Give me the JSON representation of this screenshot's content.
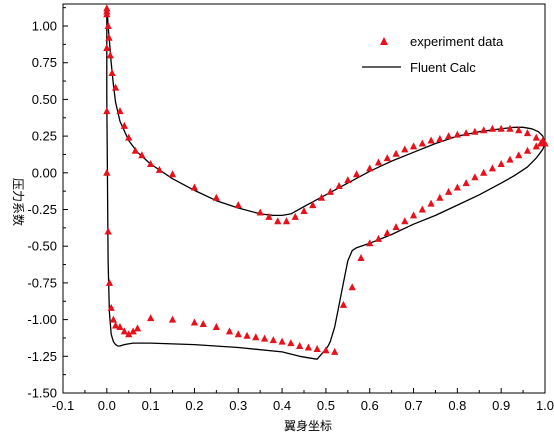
{
  "chart_data": {
    "type": "scatter",
    "title": "",
    "xlabel": "翼身坐标",
    "ylabel": "压力系数",
    "xlim": [
      -0.1,
      1.0
    ],
    "ylim": [
      -1.5,
      1.15
    ],
    "xticks": [
      "-0.1",
      "0.0",
      "0.1",
      "0.2",
      "0.3",
      "0.4",
      "0.5",
      "0.6",
      "0.7",
      "0.8",
      "0.9",
      "1.0"
    ],
    "yticks": [
      "-1.50",
      "-1.25",
      "-1.00",
      "-0.75",
      "-0.50",
      "-0.25",
      "0.00",
      "0.25",
      "0.50",
      "0.75",
      "1.00"
    ],
    "grid": false,
    "legend_position": "top-right",
    "legend": {
      "experiment_label": "experiment data",
      "fluent_label": "Fluent Calc"
    },
    "colors": {
      "experiment": "#e8101a",
      "fluent": "#000000"
    },
    "series": [
      {
        "name": "experiment data",
        "type": "scatter",
        "x": [
          0.0,
          0.0,
          0.0,
          0.003,
          0.005,
          0.008,
          0.012,
          0.02,
          0.03,
          0.04,
          0.05,
          0.065,
          0.08,
          0.1,
          0.12,
          0.15,
          0.2,
          0.25,
          0.3,
          0.35,
          0.37,
          0.39,
          0.41,
          0.43,
          0.45,
          0.47,
          0.49,
          0.51,
          0.53,
          0.55,
          0.57,
          0.6,
          0.62,
          0.64,
          0.66,
          0.68,
          0.7,
          0.72,
          0.74,
          0.76,
          0.78,
          0.8,
          0.82,
          0.84,
          0.86,
          0.88,
          0.9,
          0.92,
          0.94,
          0.96,
          0.98,
          0.995,
          1.0,
          0.0,
          0.0,
          0.0,
          0.003,
          0.006,
          0.01,
          0.015,
          0.02,
          0.03,
          0.04,
          0.05,
          0.06,
          0.07,
          0.1,
          0.15,
          0.2,
          0.22,
          0.25,
          0.28,
          0.3,
          0.32,
          0.34,
          0.36,
          0.38,
          0.4,
          0.42,
          0.44,
          0.46,
          0.48,
          0.5,
          0.52,
          0.54,
          0.56,
          0.58,
          0.6,
          0.62,
          0.64,
          0.66,
          0.68,
          0.7,
          0.72,
          0.74,
          0.76,
          0.78,
          0.8,
          0.82,
          0.84,
          0.86,
          0.88,
          0.9,
          0.92,
          0.94,
          0.96,
          0.98,
          0.99
        ],
        "y": [
          1.12,
          1.1,
          1.08,
          1.0,
          0.92,
          0.8,
          0.68,
          0.58,
          0.42,
          0.32,
          0.24,
          0.15,
          0.12,
          0.06,
          0.02,
          -0.01,
          -0.1,
          -0.17,
          -0.22,
          -0.27,
          -0.3,
          -0.33,
          -0.33,
          -0.3,
          -0.26,
          -0.22,
          -0.17,
          -0.13,
          -0.09,
          -0.05,
          -0.01,
          0.03,
          0.07,
          0.1,
          0.13,
          0.16,
          0.18,
          0.2,
          0.22,
          0.23,
          0.25,
          0.26,
          0.27,
          0.28,
          0.29,
          0.3,
          0.3,
          0.3,
          0.29,
          0.27,
          0.24,
          0.22,
          0.2,
          0.85,
          0.42,
          0.0,
          -0.4,
          -0.75,
          -0.92,
          -1.0,
          -1.04,
          -1.05,
          -1.08,
          -1.1,
          -1.08,
          -1.06,
          -0.99,
          -1.0,
          -1.02,
          -1.03,
          -1.05,
          -1.08,
          -1.1,
          -1.11,
          -1.12,
          -1.13,
          -1.14,
          -1.15,
          -1.16,
          -1.18,
          -1.19,
          -1.2,
          -1.21,
          -1.22,
          -0.9,
          -0.78,
          -0.58,
          -0.48,
          -0.45,
          -0.41,
          -0.37,
          -0.33,
          -0.29,
          -0.25,
          -0.21,
          -0.17,
          -0.13,
          -0.1,
          -0.07,
          -0.03,
          0.0,
          0.03,
          0.06,
          0.09,
          0.12,
          0.15,
          0.18,
          0.2
        ]
      },
      {
        "name": "Fluent Calc",
        "type": "line",
        "x": [
          0.5,
          0.48,
          0.46,
          0.44,
          0.4,
          0.3,
          0.2,
          0.1,
          0.06,
          0.04,
          0.03,
          0.025,
          0.02,
          0.015,
          0.01,
          0.006,
          0.003,
          0.001,
          0.0,
          0.0,
          0.0,
          0.001,
          0.003,
          0.006,
          0.01,
          0.015,
          0.02,
          0.03,
          0.05,
          0.07,
          0.1,
          0.15,
          0.2,
          0.25,
          0.3,
          0.35,
          0.38,
          0.4,
          0.42,
          0.45,
          0.5,
          0.55,
          0.6,
          0.65,
          0.7,
          0.75,
          0.8,
          0.85,
          0.9,
          0.93,
          0.95,
          0.97,
          0.985,
          0.995,
          1.0,
          0.995,
          0.98,
          0.96,
          0.93,
          0.9,
          0.85,
          0.8,
          0.75,
          0.7,
          0.65,
          0.6,
          0.57,
          0.56,
          0.55,
          0.54,
          0.53,
          0.52,
          0.51,
          0.505,
          0.5
        ],
        "y": [
          -1.2,
          -1.27,
          -1.26,
          -1.25,
          -1.22,
          -1.19,
          -1.17,
          -1.16,
          -1.16,
          -1.17,
          -1.18,
          -1.18,
          -1.17,
          -1.15,
          -1.1,
          -0.95,
          -0.6,
          0.1,
          0.5,
          1.0,
          1.12,
          1.1,
          1.0,
          0.9,
          0.75,
          0.6,
          0.48,
          0.35,
          0.22,
          0.14,
          0.06,
          -0.04,
          -0.12,
          -0.19,
          -0.24,
          -0.28,
          -0.29,
          -0.29,
          -0.28,
          -0.23,
          -0.15,
          -0.07,
          0.01,
          0.08,
          0.14,
          0.2,
          0.25,
          0.28,
          0.3,
          0.31,
          0.31,
          0.3,
          0.28,
          0.25,
          0.2,
          0.16,
          0.1,
          0.04,
          -0.02,
          -0.07,
          -0.15,
          -0.22,
          -0.29,
          -0.35,
          -0.42,
          -0.48,
          -0.51,
          -0.53,
          -0.6,
          -0.75,
          -0.9,
          -1.05,
          -1.15,
          -1.18,
          -1.2
        ]
      }
    ]
  }
}
